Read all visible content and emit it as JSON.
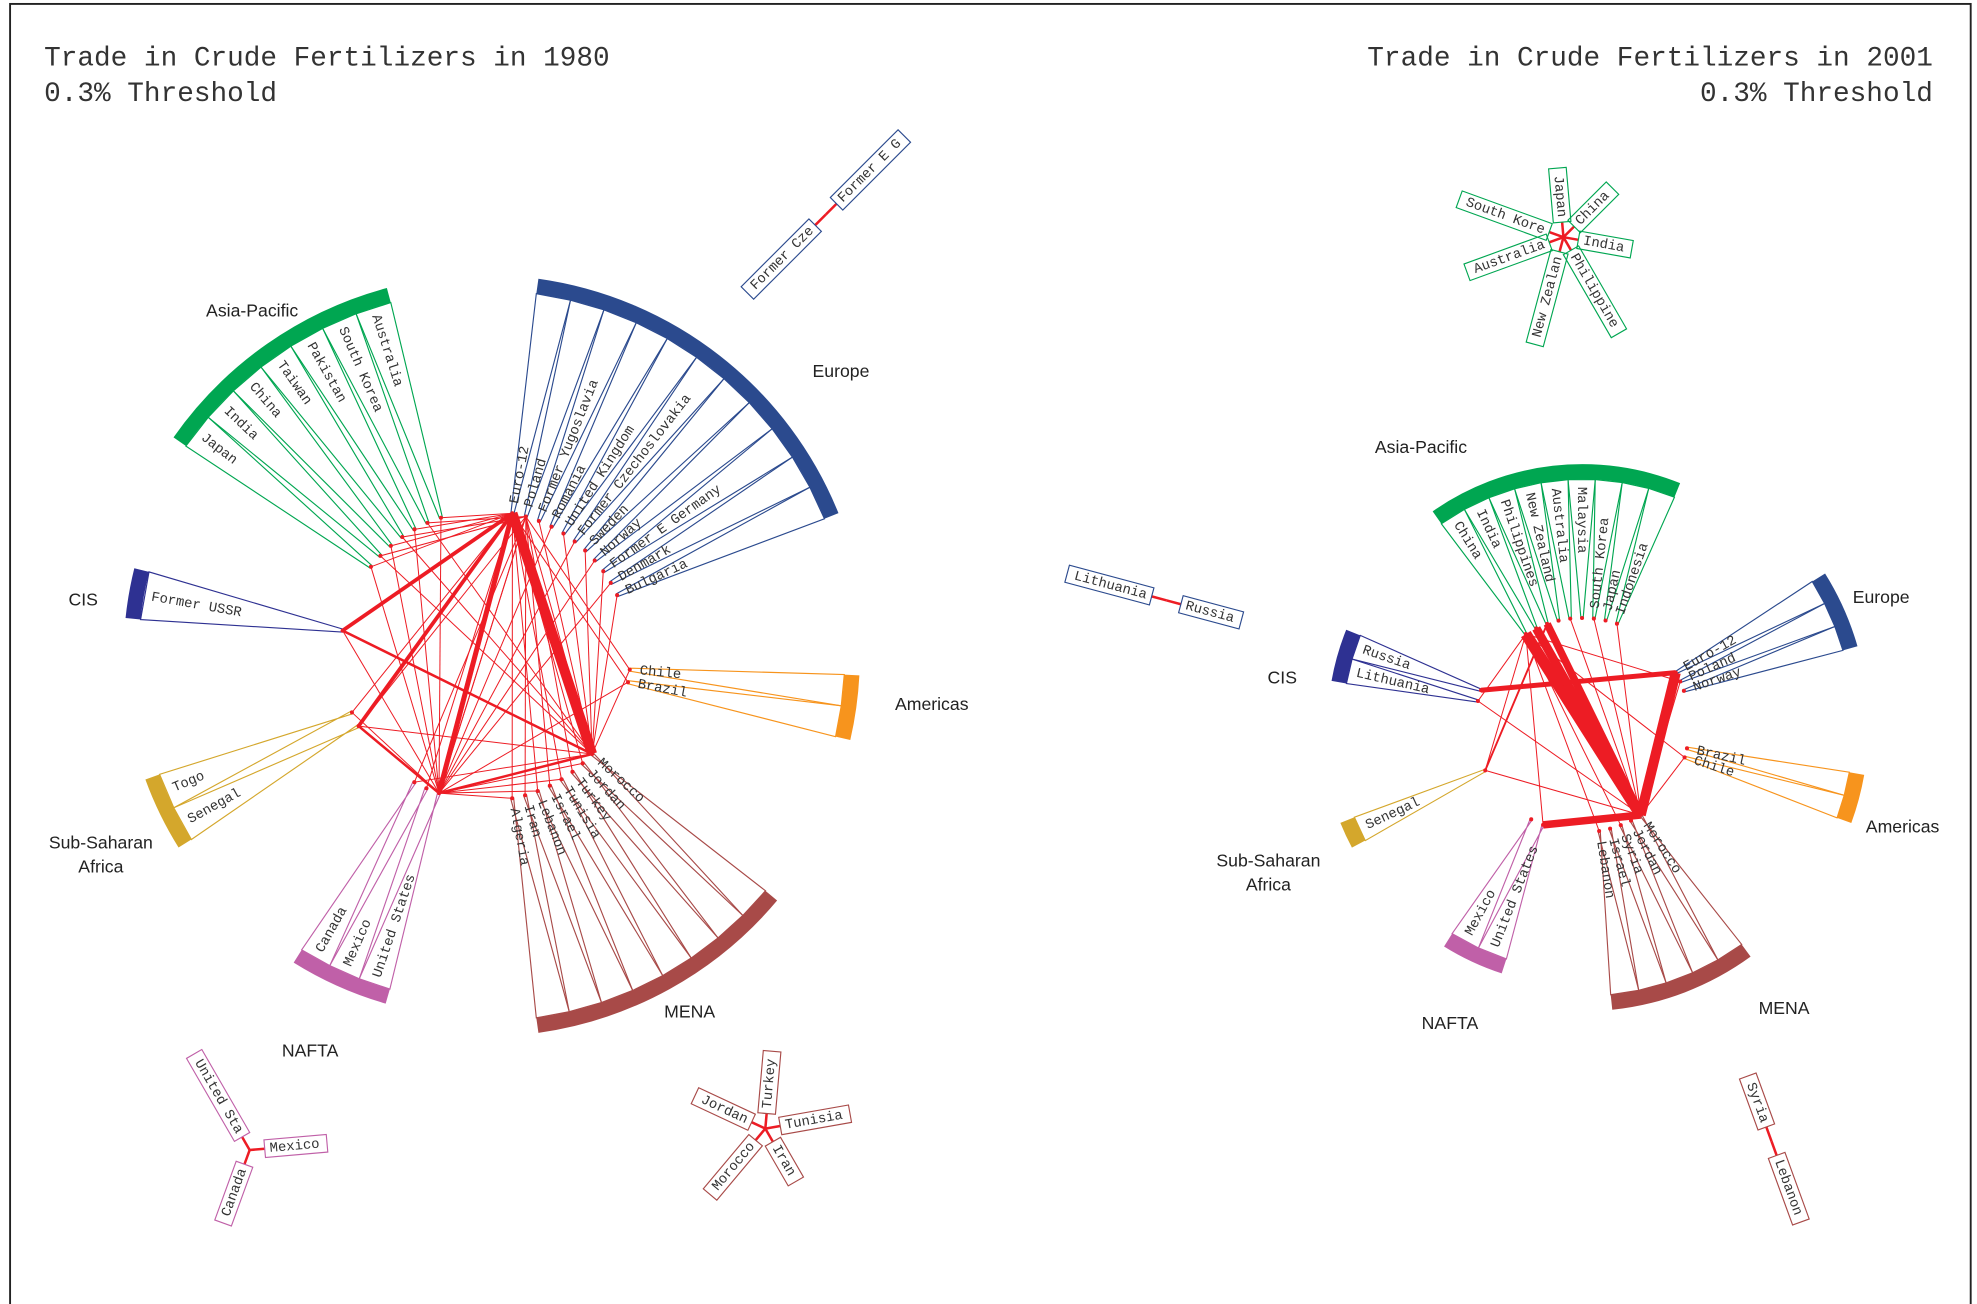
{
  "panels": [
    {
      "title": [
        "Trade in Crude Fertilizers in 1980",
        "0.3% Threshold"
      ],
      "regions": [
        {
          "name": "Asia-Pacific",
          "color": "#00a651",
          "countries": [
            "Japan",
            "India",
            "China",
            "Taiwan",
            "Pakistan",
            "South Korea",
            "Australia"
          ]
        },
        {
          "name": "Europe",
          "color": "#2b4a8e",
          "countries": [
            "Euro-12",
            "Poland",
            "Former Yugoslavia",
            "Romania",
            "United Kingdom",
            "Former Czechoslovakia",
            "Sweden",
            "Norway",
            "Former E Germany",
            "Denmark",
            "Bulgaria"
          ]
        },
        {
          "name": "CIS",
          "color": "#2e3192",
          "countries": [
            "Former USSR"
          ]
        },
        {
          "name": "Americas",
          "color": "#f7941d",
          "countries": [
            "Chile",
            "Brazil"
          ]
        },
        {
          "name": "Sub-Saharan Africa",
          "color": "#d4a72c",
          "countries": [
            "Togo",
            "Senegal"
          ]
        },
        {
          "name": "NAFTA",
          "color": "#c060a8",
          "countries": [
            "Canada",
            "Mexico",
            "United States"
          ]
        },
        {
          "name": "MENA",
          "color": "#a84a48",
          "countries": [
            "Algeria",
            "Iran",
            "Lebanon",
            "Israel",
            "Tunisia",
            "Turkey",
            "Jordan",
            "Morocco"
          ]
        }
      ],
      "subgraphs": [
        {
          "color": "#2b4a8e",
          "labels": [
            "Former Cze",
            "Former E G"
          ]
        },
        {
          "color": "#c060a8",
          "labels": [
            "United Sta",
            "Mexico",
            "Canada"
          ]
        },
        {
          "color": "#a84a48",
          "labels": [
            "Turkey",
            "Jordan",
            "Tunisia",
            "Morocco",
            "Iran"
          ]
        }
      ]
    },
    {
      "title": [
        "Trade in Crude Fertilizers in 2001",
        "0.3% Threshold"
      ],
      "regions": [
        {
          "name": "Asia-Pacific",
          "color": "#00a651",
          "countries": [
            "China",
            "India",
            "Philippines",
            "New Zealand",
            "Australia",
            "Malaysia",
            "South Korea",
            "Japan",
            "Indonesia"
          ]
        },
        {
          "name": "Europe",
          "color": "#2b4a8e",
          "countries": [
            "Euro-12",
            "Poland",
            "Norway"
          ]
        },
        {
          "name": "CIS",
          "color": "#2e3192",
          "countries": [
            "Lithuania",
            "Russia"
          ]
        },
        {
          "name": "Americas",
          "color": "#f7941d",
          "countries": [
            "Brazil",
            "Chile"
          ]
        },
        {
          "name": "Sub-Saharan Africa",
          "color": "#d4a72c",
          "countries": [
            "Senegal"
          ]
        },
        {
          "name": "NAFTA",
          "color": "#c060a8",
          "countries": [
            "Mexico",
            "United States"
          ]
        },
        {
          "name": "MENA",
          "color": "#a84a48",
          "countries": [
            "Lebanon",
            "Israel",
            "Syria",
            "Jordan",
            "Morocco"
          ]
        }
      ],
      "subgraphs": [
        {
          "color": "#00a651",
          "labels": [
            "Japan",
            "South Kore",
            "China",
            "India",
            "Australia",
            "New Zealan",
            "Philippine"
          ]
        },
        {
          "color": "#2b4a8e",
          "labels": [
            "Lithuania",
            "Russia"
          ]
        },
        {
          "color": "#a84a48",
          "labels": [
            "Syria",
            "Lebanon"
          ]
        }
      ]
    }
  ]
}
